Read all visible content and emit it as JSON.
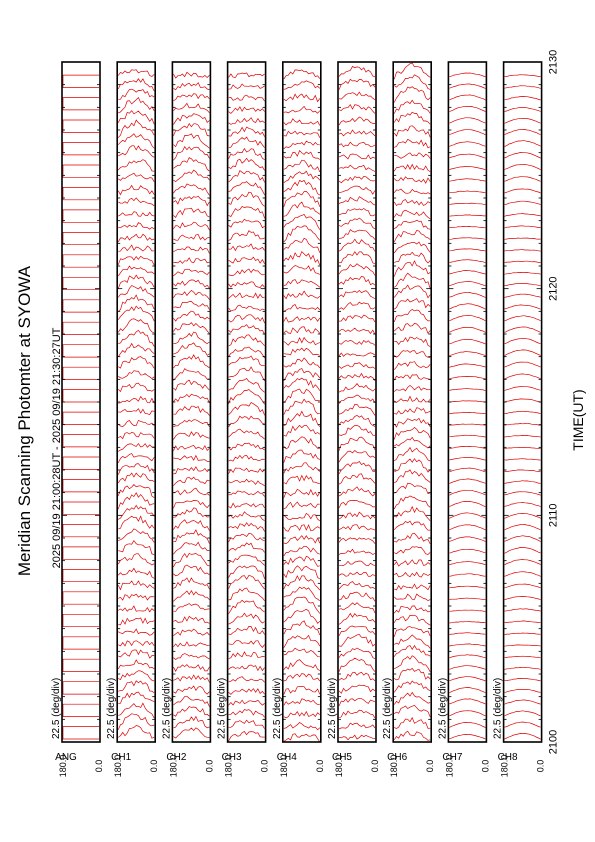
{
  "chart_data": {
    "type": "line",
    "title": "Meridian Scanning Photomter at SYOWA",
    "subtitle": "2025 09/19 21:00:28UT - 2025 09/19 21:30:27UT",
    "xlabel": "TIME(UT)",
    "x_ticks": [
      "2100",
      "2110",
      "2120",
      "2130"
    ],
    "xlim": [
      "2100",
      "2130"
    ],
    "ylim": [
      0.0,
      180.0
    ],
    "y_top_label": "180.0",
    "y_bottom_label": "0.0",
    "scale_label": "22.5 (deg/div)",
    "orientation": "rotated-90-ccw",
    "trace_color": "#e00000",
    "channels": [
      {
        "name": "ANG",
        "amplitude": 0.0,
        "style": "square"
      },
      {
        "name": "CH1",
        "amplitude": 0.34,
        "style": "noise"
      },
      {
        "name": "CH2",
        "amplitude": 0.3,
        "style": "noise"
      },
      {
        "name": "CH3",
        "amplitude": 0.3,
        "style": "noise"
      },
      {
        "name": "CH4",
        "amplitude": 0.34,
        "style": "noise"
      },
      {
        "name": "CH5",
        "amplitude": 0.28,
        "style": "noise"
      },
      {
        "name": "CH6",
        "amplitude": 0.32,
        "style": "noise"
      },
      {
        "name": "CH7",
        "amplitude": 0.15,
        "style": "smooth"
      },
      {
        "name": "CH8",
        "amplitude": 0.16,
        "style": "smooth"
      }
    ]
  }
}
